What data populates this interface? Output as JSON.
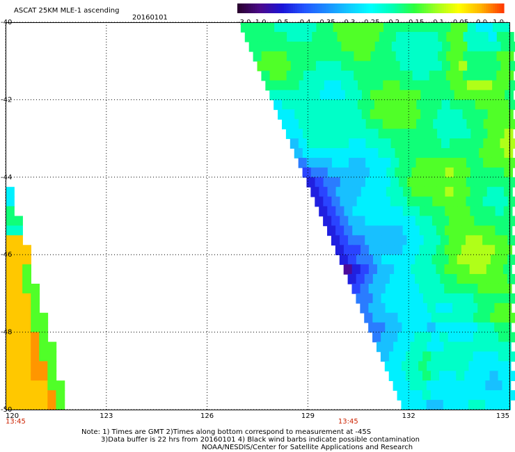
{
  "header": {
    "title": "ASCAT 25KM MLE-1 ascending",
    "date": "20160101"
  },
  "colorbar": {
    "labels": [
      "-3.0",
      "-1.0",
      "-0.5",
      "-0.4",
      "-0.35",
      "-0.3",
      "-0.25",
      "-0.2",
      "-0.15",
      "-0.1",
      "-0.05",
      "0.0",
      "1.0"
    ],
    "colors": [
      "#2a0030",
      "#4b0a8c",
      "#1a14d8",
      "#2255ff",
      "#1c8cff",
      "#11c8ff",
      "#00ffff",
      "#00ffb4",
      "#2dff3c",
      "#a0ff1e",
      "#ffff00",
      "#ffb400",
      "#ff3c00"
    ]
  },
  "map": {
    "lat_labels": [
      "-40",
      "-42",
      "-44",
      "-46",
      "-48",
      "-50"
    ],
    "lon_labels": [
      "120",
      "123",
      "126",
      "129",
      "132",
      "135"
    ],
    "time_labels": [
      {
        "text": "13:45",
        "lon": 120
      },
      {
        "text": "13:45",
        "lon": 130.2
      }
    ]
  },
  "notes": {
    "line1": "Note: 1) Times are GMT 2)Times along bottom correspond to measurement at -45S",
    "line2": "3)Data buffer is 22 hrs from 20160101 4) Black wind barbs indicate possible contamination",
    "line3": "NOAA/NESDIS/Center for Satellite Applications and Research"
  }
}
